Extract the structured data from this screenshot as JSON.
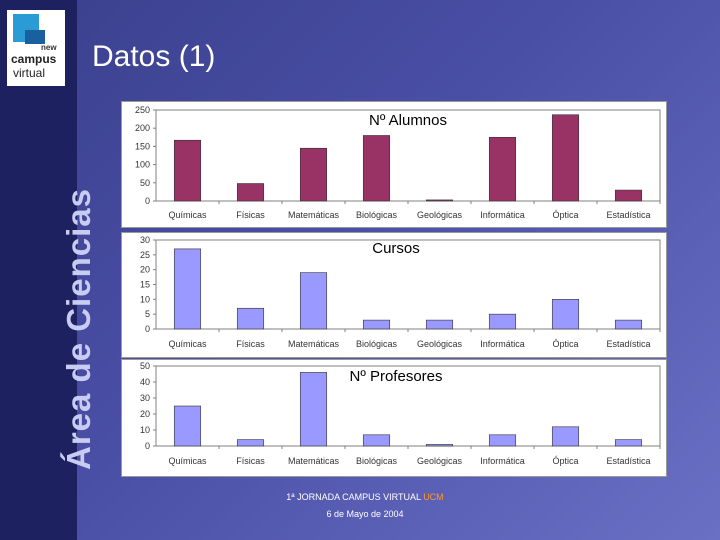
{
  "slide": {
    "title": "Datos (1)",
    "vertical_title": "Área de Ciencias",
    "logo": {
      "new": "new",
      "campus": "campus",
      "virtual": "virtual"
    },
    "footer": {
      "event": "1ª JORNADA CAMPUS VIRTUAL",
      "org": "UCM",
      "date": "6 de Mayo de 2004"
    }
  },
  "colors": {
    "alumnos": "#993366",
    "cursos": "#9999ff",
    "profesores": "#9999ff"
  },
  "chart_data": [
    {
      "type": "bar",
      "title": "Nº Alumnos",
      "categories": [
        "Químicas",
        "Físicas",
        "Matemáticas",
        "Biológicas",
        "Geológicas",
        "Informática",
        "Óptica",
        "Estadística"
      ],
      "values": [
        167,
        48,
        145,
        180,
        3,
        175,
        237,
        30
      ],
      "yticks": [
        "0",
        "50",
        "100",
        "150",
        "200",
        "250"
      ],
      "ylim": [
        0,
        250
      ]
    },
    {
      "type": "bar",
      "title": "Cursos",
      "categories": [
        "Químicas",
        "Físicas",
        "Matemáticas",
        "Biológicas",
        "Geológicas",
        "Informática",
        "Óptica",
        "Estadística"
      ],
      "values": [
        27,
        7,
        19,
        3,
        3,
        5,
        10,
        3
      ],
      "yticks": [
        "0",
        "5",
        "10",
        "15",
        "20",
        "25",
        "30"
      ],
      "ylim": [
        0,
        30
      ]
    },
    {
      "type": "bar",
      "title": "Nº Profesores",
      "categories": [
        "Químicas",
        "Físicas",
        "Matemáticas",
        "Biológicas",
        "Geológicas",
        "Informática",
        "Óptica",
        "Estadística"
      ],
      "values": [
        25,
        4,
        46,
        7,
        1,
        7,
        12,
        4
      ],
      "yticks": [
        "0",
        "10",
        "20",
        "30",
        "40",
        "50"
      ],
      "ylim": [
        0,
        50
      ]
    }
  ]
}
